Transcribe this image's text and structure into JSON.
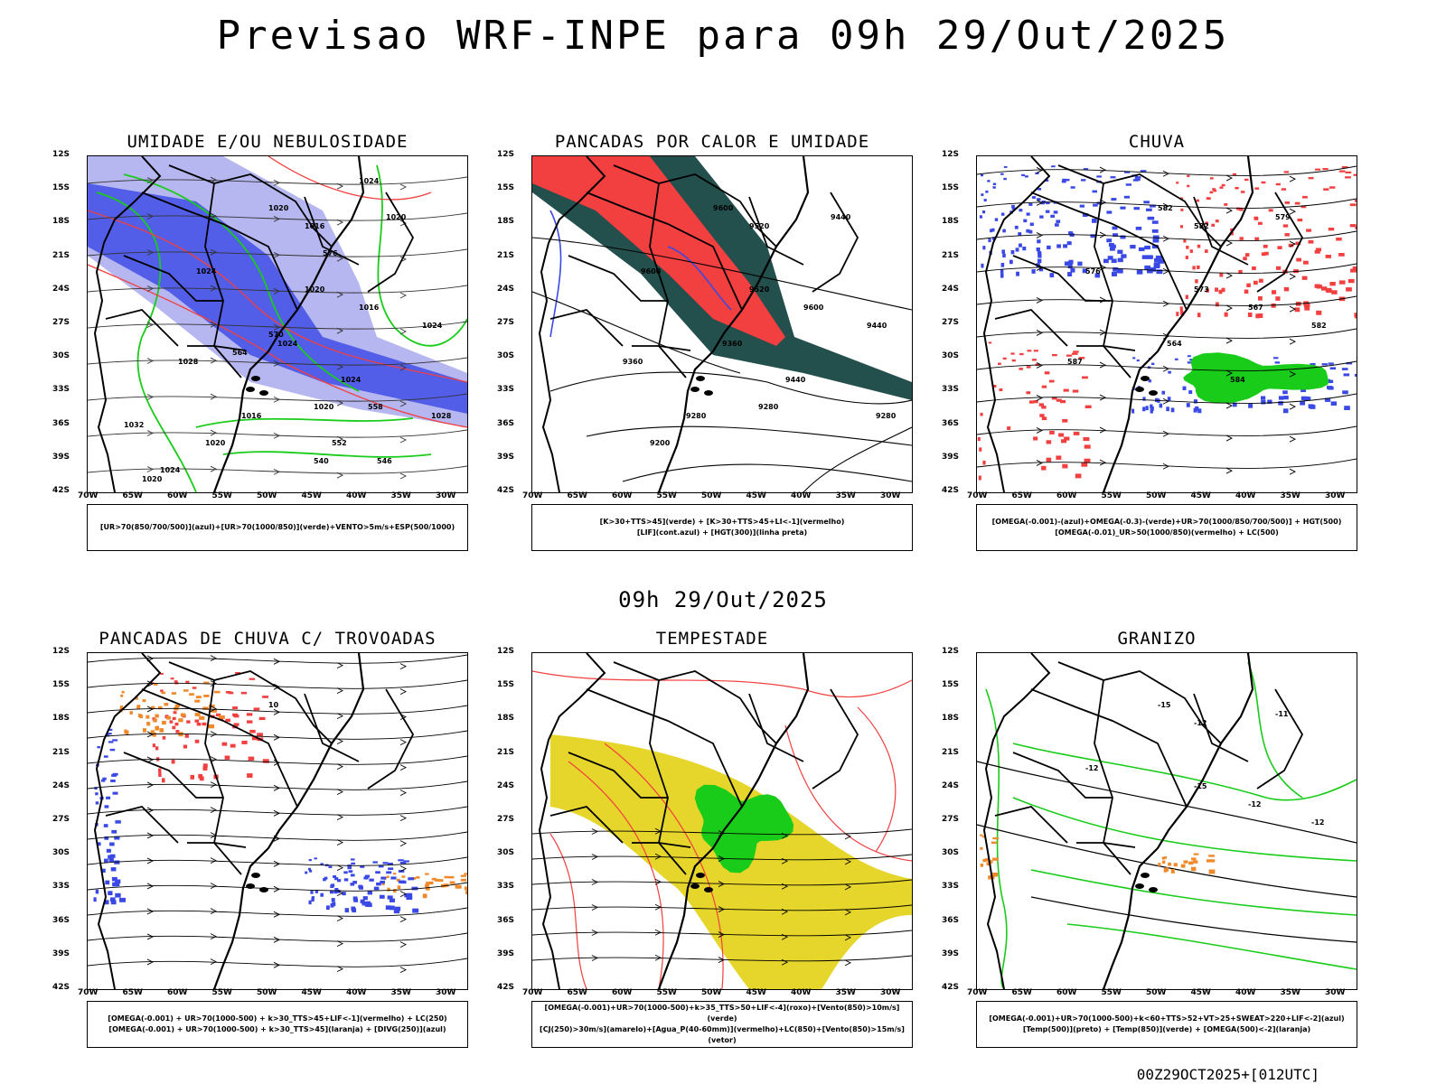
{
  "header": {
    "title": "Previsao WRF-INPE  para 09h 29/Out/2025"
  },
  "mid_title": "09h 29/Out/2025",
  "footer": "00Z29OCT2025+[012UTC]",
  "axes": {
    "lat": [
      "12S",
      "15S",
      "18S",
      "21S",
      "24S",
      "27S",
      "30S",
      "33S",
      "36S",
      "39S",
      "42S"
    ],
    "lon": [
      "70W",
      "65W",
      "60W",
      "55W",
      "50W",
      "45W",
      "40W",
      "35W",
      "30W"
    ]
  },
  "colors": {
    "blue": "#3a49e6",
    "green": "#19cc19",
    "red": "#f23f3f",
    "orange": "#f0892a",
    "darkteal": "#234f4d",
    "yellow": "#e6d52a",
    "lavender": "#b6b6f0"
  },
  "panels": [
    {
      "title": "UMIDADE E/OU NEBULOSIDADE",
      "legend": [
        "[UR>70(850/700/500)](azul)+[UR>70(1000/850)](verde)+VENTO>5m/s+ESP(500/1000)"
      ],
      "labels": [
        "1020",
        "1016",
        "1020",
        "1024",
        "1020",
        "1016",
        "1024",
        "1024",
        "1028",
        "1024",
        "1020",
        "1016",
        "1020",
        "1028",
        "1032",
        "1020",
        "1024",
        "1024",
        "576",
        "570",
        "564",
        "558",
        "552",
        "546",
        "540"
      ]
    },
    {
      "title": "PANCADAS POR CALOR E UMIDADE",
      "legend": [
        "[K>30+TTS>45](verde) + [K>30+TTS>45+LI<-1](vermelho)",
        "[LIF](cont.azul) + [HGT(300)](linha preta)"
      ],
      "labels": [
        "9600",
        "9520",
        "9440",
        "9600",
        "9520",
        "9600",
        "9440",
        "9360",
        "9360",
        "9440",
        "9280",
        "9280",
        "9200",
        "9280"
      ]
    },
    {
      "title": "CHUVA",
      "legend": [
        "[OMEGA(-0.001)-(azul)+OMEGA(-0.3)-(verde)+UR>70(1000/850/700/500)] + HGT(500)",
        "[OMEGA(-0.01)_UR>50(1000/850)(vermelho) + LC(500)"
      ],
      "labels": [
        "582",
        "582",
        "579",
        "576",
        "573",
        "567",
        "582",
        "564",
        "587",
        "584"
      ]
    },
    {
      "title": "PANCADAS DE CHUVA C/ TROVOADAS",
      "legend": [
        "[OMEGA(-0.001) + UR>70(1000-500) + k>30_TTS>45+LIF<-1](vermelho) + LC(250)",
        "[OMEGA(-0.001) + UR>70(1000-500) + k>30_TTS>45](laranja) + [DIVG(250)](azul)"
      ],
      "labels": [
        "10"
      ]
    },
    {
      "title": "TEMPESTADE",
      "legend": [
        "[OMEGA(-0.001)+UR>70(1000-500)+k>35_TTS>50+LIF<-4](roxo)+[Vento(850)>10m/s](verde)",
        "[CJ(250)>30m/s](amarelo)+[Agua_P(40-60mm)](vermelho)+LC(850)+[Vento(850)>15m/s](vetor)"
      ],
      "labels": []
    },
    {
      "title": "GRANIZO",
      "legend": [
        "[OMEGA(-0.001)+UR>70(1000-500)+k<60+TTS>52+VT>25+SWEAT>220+LIF<-2](azul)",
        "[Temp(500)](preto) + [Temp(850)](verde) + [OMEGA(500)<-2](laranja)"
      ],
      "labels": [
        "-15",
        "-12",
        "-11",
        "-12",
        "-15",
        "-12",
        "-12"
      ]
    }
  ]
}
